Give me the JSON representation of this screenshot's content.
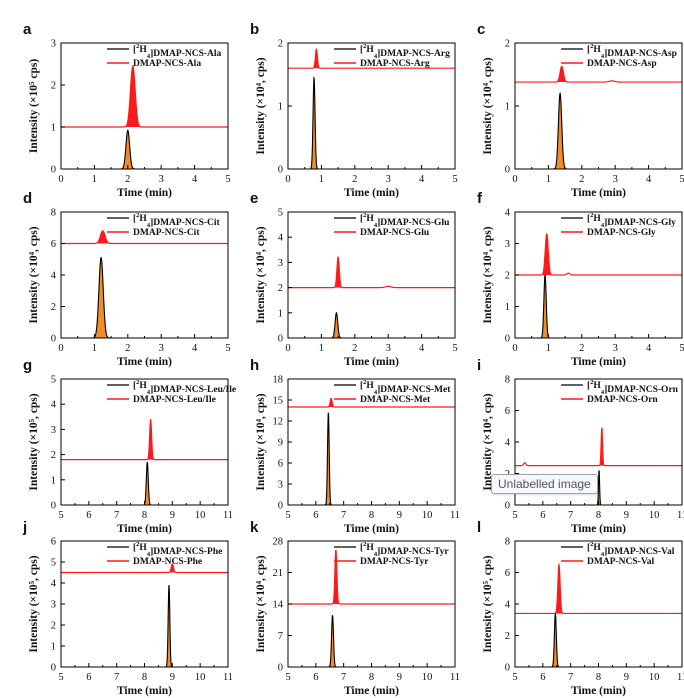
{
  "overlay_tooltip": "Unlabelled image",
  "colors": {
    "labelled_trace": "#000000",
    "unlabelled_trace": "#ff1a1a",
    "labelled_fill": "#f28c28",
    "unlabelled_fill": "#ff1a1a"
  },
  "chart_data": [
    {
      "panel": "a",
      "type": "line",
      "xlabel": "Time (min)",
      "ylabel": "Intensity (×10⁵ cps)",
      "xlim": [
        0,
        5
      ],
      "xticks": [
        0,
        1,
        2,
        3,
        4,
        5
      ],
      "ylim": [
        0,
        3
      ],
      "yticks": [
        0,
        1,
        2,
        3
      ],
      "series": [
        {
          "name": "[²H₄]DMAP-NCS-Ala",
          "label_parts": [
            "[",
            "2",
            "H",
            "4",
            "]DMAP-NCS-Ala"
          ],
          "baseline": 0,
          "peaks": [
            {
              "rt": 2.0,
              "height": 0.92,
              "width": 0.055
            }
          ]
        },
        {
          "name": "DMAP-NCS-Ala",
          "baseline": 1.0,
          "peaks": [
            {
              "rt": 2.15,
              "height": 1.45,
              "width": 0.07
            }
          ]
        }
      ]
    },
    {
      "panel": "b",
      "type": "line",
      "xlabel": "Time (min)",
      "ylabel": "Intensity (×10⁴, cps)",
      "xlim": [
        0,
        5
      ],
      "xticks": [
        0,
        1,
        2,
        3,
        4,
        5
      ],
      "ylim": [
        0,
        2
      ],
      "yticks": [
        0,
        1,
        2
      ],
      "series": [
        {
          "name": "[²H₄]DMAP-NCS-Arg",
          "label_parts": [
            "[",
            "2",
            "H",
            "4",
            "]DMAP-NCS-Arg"
          ],
          "baseline": 0,
          "peaks": [
            {
              "rt": 0.78,
              "height": 1.45,
              "width": 0.03
            }
          ]
        },
        {
          "name": "DMAP-NCS-Arg",
          "baseline": 1.6,
          "peaks": [
            {
              "rt": 0.85,
              "height": 0.3,
              "width": 0.03
            }
          ]
        }
      ]
    },
    {
      "panel": "c",
      "type": "line",
      "xlabel": "Time (min)",
      "ylabel": "Intensity (×10⁴, cps)",
      "xlim": [
        0,
        5
      ],
      "xticks": [
        0,
        1,
        2,
        3,
        4,
        5
      ],
      "ylim": [
        0,
        2
      ],
      "yticks": [
        0,
        1,
        2
      ],
      "series": [
        {
          "name": "[²H₄]DMAP-NCS-Asp",
          "label_parts": [
            "[",
            "2",
            "H",
            "4",
            "]DMAP-NCS-Asp"
          ],
          "baseline": 0,
          "peaks": [
            {
              "rt": 1.35,
              "height": 1.2,
              "width": 0.05
            }
          ]
        },
        {
          "name": "DMAP-NCS-Asp",
          "baseline": 1.38,
          "peaks": [
            {
              "rt": 1.4,
              "height": 0.25,
              "width": 0.05
            },
            {
              "rt": 2.9,
              "height": 0.02,
              "width": 0.08
            }
          ]
        }
      ]
    },
    {
      "panel": "d",
      "type": "line",
      "xlabel": "Time (min)",
      "ylabel": "Intensity (×10⁴, cps)",
      "xlim": [
        0,
        5
      ],
      "xticks": [
        0,
        1,
        2,
        3,
        4,
        5
      ],
      "ylim": [
        0,
        8
      ],
      "yticks": [
        0,
        2,
        4,
        6,
        8
      ],
      "series": [
        {
          "name": "[²H₄]DMAP-NCS-Cit",
          "label_parts": [
            "[",
            "2",
            "H",
            "4",
            "]DMAP-NCS-Cit"
          ],
          "baseline": 0,
          "peaks": [
            {
              "rt": 1.2,
              "height": 5.1,
              "width": 0.065
            }
          ]
        },
        {
          "name": "DMAP-NCS-Cit",
          "baseline": 6.0,
          "peaks": [
            {
              "rt": 1.25,
              "height": 0.8,
              "width": 0.07
            }
          ]
        }
      ]
    },
    {
      "panel": "e",
      "type": "line",
      "xlabel": "Time (min)",
      "ylabel": "Intensity (×10⁴, cps)",
      "xlim": [
        0,
        5
      ],
      "xticks": [
        0,
        1,
        2,
        3,
        4,
        5
      ],
      "ylim": [
        0,
        5
      ],
      "yticks": [
        0,
        1,
        2,
        3,
        4,
        5
      ],
      "series": [
        {
          "name": "[²H₄]DMAP-NCS-Glu",
          "label_parts": [
            "[",
            "2",
            "H",
            "4",
            "]DMAP-NCS-Glu"
          ],
          "baseline": 0,
          "peaks": [
            {
              "rt": 1.45,
              "height": 1.0,
              "width": 0.04
            }
          ]
        },
        {
          "name": "DMAP-NCS-Glu",
          "baseline": 2.0,
          "peaks": [
            {
              "rt": 1.5,
              "height": 1.2,
              "width": 0.035
            },
            {
              "rt": 3.0,
              "height": 0.05,
              "width": 0.08
            }
          ]
        }
      ]
    },
    {
      "panel": "f",
      "type": "line",
      "xlabel": "Time (min)",
      "ylabel": "Intensity (×10⁴, cps)",
      "xlim": [
        0,
        5
      ],
      "xticks": [
        0,
        1,
        2,
        3,
        4,
        5
      ],
      "ylim": [
        0,
        4
      ],
      "yticks": [
        0,
        1,
        2,
        3,
        4
      ],
      "series": [
        {
          "name": "[²H₄]DMAP-NCS-Gly",
          "label_parts": [
            "[",
            "2",
            "H",
            "4",
            "]DMAP-NCS-Gly"
          ],
          "baseline": 0,
          "peaks": [
            {
              "rt": 0.9,
              "height": 2.0,
              "width": 0.035
            }
          ]
        },
        {
          "name": "DMAP-NCS-Gly",
          "baseline": 2.0,
          "peaks": [
            {
              "rt": 0.95,
              "height": 1.3,
              "width": 0.045
            },
            {
              "rt": 1.6,
              "height": 0.06,
              "width": 0.05
            }
          ]
        }
      ]
    },
    {
      "panel": "g",
      "type": "line",
      "xlabel": "Time (min)",
      "ylabel": "Intensity (×10⁵, cps)",
      "xlim": [
        5,
        11
      ],
      "xticks": [
        5,
        6,
        7,
        8,
        9,
        10,
        11
      ],
      "ylim": [
        0,
        5
      ],
      "yticks": [
        0,
        1,
        2,
        3,
        4,
        5
      ],
      "series": [
        {
          "name": "[²H₄]DMAP-NCS-Leu/Ile",
          "label_parts": [
            "[",
            "2",
            "H",
            "4",
            "]DMAP-NCS-Leu/Ile"
          ],
          "baseline": 0,
          "peaks": [
            {
              "rt": 8.1,
              "height": 1.7,
              "width": 0.035
            }
          ]
        },
        {
          "name": "DMAP-NCS-Leu/Ile",
          "baseline": 1.8,
          "peaks": [
            {
              "rt": 8.22,
              "height": 1.6,
              "width": 0.035
            }
          ]
        }
      ]
    },
    {
      "panel": "h",
      "type": "line",
      "xlabel": "Time (min)",
      "ylabel": "Intensity (×10⁴, cps)",
      "xlim": [
        5,
        11
      ],
      "xticks": [
        5,
        6,
        7,
        8,
        9,
        10,
        11
      ],
      "ylim": [
        0,
        18
      ],
      "yticks": [
        0,
        3,
        6,
        9,
        12,
        15,
        18
      ],
      "series": [
        {
          "name": "[²H₄]DMAP-NCS-Met",
          "label_parts": [
            "[",
            "2",
            "H",
            "4",
            "]DMAP-NCS-Met"
          ],
          "baseline": 0,
          "peaks": [
            {
              "rt": 6.45,
              "height": 13.2,
              "width": 0.03
            }
          ]
        },
        {
          "name": "DMAP-NCS-Met",
          "baseline": 14.0,
          "peaks": [
            {
              "rt": 6.55,
              "height": 1.2,
              "width": 0.035
            }
          ]
        }
      ]
    },
    {
      "panel": "i",
      "type": "line",
      "xlabel": "Time (min)",
      "ylabel": "Intensity (×10⁴, cps)",
      "xlim": [
        5,
        11
      ],
      "xticks": [
        5,
        6,
        7,
        8,
        9,
        10,
        11
      ],
      "ylim": [
        0,
        8
      ],
      "yticks": [
        0,
        2,
        4,
        6,
        8
      ],
      "series": [
        {
          "name": "[²H₄]DMAP-NCS-Orn",
          "label_parts": [
            "[",
            "2",
            "H",
            "4",
            "]DMAP-NCS-Orn"
          ],
          "baseline": 0,
          "peaks": [
            {
              "rt": 8.02,
              "height": 2.2,
              "width": 0.02
            }
          ]
        },
        {
          "name": "DMAP-NCS-Orn",
          "baseline": 2.5,
          "peaks": [
            {
              "rt": 8.12,
              "height": 2.4,
              "width": 0.025
            },
            {
              "rt": 5.35,
              "height": 0.18,
              "width": 0.04
            }
          ]
        }
      ]
    },
    {
      "panel": "j",
      "type": "line",
      "xlabel": "Time (min)",
      "ylabel": "Intensity (×10⁵, cps)",
      "xlim": [
        5,
        11
      ],
      "xticks": [
        5,
        6,
        7,
        8,
        9,
        10,
        11
      ],
      "ylim": [
        0,
        6
      ],
      "yticks": [
        0,
        1,
        2,
        3,
        4,
        5,
        6
      ],
      "series": [
        {
          "name": "[²H₄]DMAP-NCS-Phe",
          "label_parts": [
            "[",
            "2",
            "H",
            "4",
            "]DMAP-NCS-Phe"
          ],
          "baseline": 0,
          "peaks": [
            {
              "rt": 8.88,
              "height": 3.9,
              "width": 0.03
            }
          ]
        },
        {
          "name": "DMAP-NCS-Phe",
          "baseline": 4.5,
          "peaks": [
            {
              "rt": 9.0,
              "height": 0.4,
              "width": 0.04
            }
          ]
        }
      ]
    },
    {
      "panel": "k",
      "type": "line",
      "xlabel": "Time (min)",
      "ylabel": "Intensity (×10⁴, cps)",
      "xlim": [
        5,
        11
      ],
      "xticks": [
        5,
        6,
        7,
        8,
        9,
        10,
        11
      ],
      "ylim": [
        0,
        28
      ],
      "yticks": [
        0,
        7,
        14,
        21,
        28
      ],
      "series": [
        {
          "name": "[²H₄]DMAP-NCS-Tyr",
          "label_parts": [
            "[",
            "2",
            "H",
            "4",
            "]DMAP-NCS-Tyr"
          ],
          "baseline": 0,
          "peaks": [
            {
              "rt": 6.6,
              "height": 11.5,
              "width": 0.035
            }
          ]
        },
        {
          "name": "DMAP-NCS-Tyr",
          "baseline": 14.0,
          "peaks": [
            {
              "rt": 6.72,
              "height": 12.0,
              "width": 0.035
            }
          ]
        }
      ]
    },
    {
      "panel": "l",
      "type": "line",
      "xlabel": "Time (min)",
      "ylabel": "Intensity (×10⁵, cps)",
      "xlim": [
        5,
        11
      ],
      "xticks": [
        5,
        6,
        7,
        8,
        9,
        10,
        11
      ],
      "ylim": [
        0,
        8
      ],
      "yticks": [
        0,
        2,
        4,
        6,
        8
      ],
      "series": [
        {
          "name": "[²H₄]DMAP-NCS-Val",
          "label_parts": [
            "[",
            "2",
            "H",
            "4",
            "]DMAP-NCS-Val"
          ],
          "baseline": 0,
          "peaks": [
            {
              "rt": 6.45,
              "height": 3.4,
              "width": 0.035
            }
          ]
        },
        {
          "name": "DMAP-NCS-Val",
          "baseline": 3.4,
          "peaks": [
            {
              "rt": 6.58,
              "height": 3.1,
              "width": 0.04
            }
          ]
        }
      ]
    }
  ]
}
